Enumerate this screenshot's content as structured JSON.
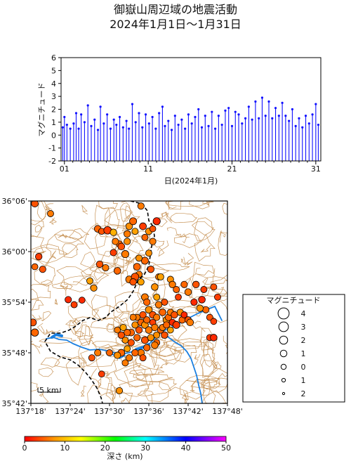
{
  "title": {
    "line1": "御嶽山周辺域の地震活動",
    "line2": "2024年1月1日～1月31日"
  },
  "chart_data": [
    {
      "type": "bar",
      "xlabel": "日(2024年1月)",
      "ylabel": "マグニチュード",
      "ylim": [
        -2,
        6
      ],
      "yticks": [
        -2,
        -1,
        0,
        1,
        2,
        3,
        4,
        5,
        6
      ],
      "xlim": [
        0.6,
        31.6
      ],
      "xticks": [
        1,
        11,
        21,
        31
      ],
      "xtick_labels": [
        "01",
        "11",
        "21",
        "31"
      ],
      "color": "#1010ff",
      "baseline": -2,
      "x": [
        0.8,
        1.0,
        1.3,
        1.7,
        2.1,
        2.4,
        2.7,
        3.0,
        3.4,
        3.8,
        4.2,
        4.6,
        5.0,
        5.3,
        5.7,
        6.1,
        6.5,
        6.9,
        7.2,
        7.6,
        8.0,
        8.4,
        8.7,
        9.1,
        9.5,
        9.9,
        10.3,
        10.7,
        11.1,
        11.5,
        11.9,
        12.3,
        12.7,
        13.0,
        13.4,
        13.8,
        14.2,
        14.6,
        15.0,
        15.4,
        15.8,
        16.2,
        16.6,
        17.0,
        17.4,
        17.8,
        18.2,
        18.6,
        19.0,
        19.4,
        19.8,
        20.2,
        20.6,
        21.0,
        21.4,
        21.8,
        22.2,
        22.6,
        23.0,
        23.4,
        23.8,
        24.2,
        24.6,
        25.0,
        25.4,
        25.8,
        26.2,
        26.6,
        27.0,
        27.4,
        27.8,
        28.2,
        28.6,
        29.0,
        29.4,
        29.8,
        30.2,
        30.6,
        31.0,
        31.3
      ],
      "values": [
        0.6,
        1.4,
        0.8,
        0.5,
        0.9,
        1.7,
        0.5,
        1.6,
        1.0,
        2.3,
        0.7,
        1.2,
        0.4,
        2.2,
        0.9,
        1.6,
        0.5,
        1.2,
        0.8,
        1.4,
        0.6,
        1.1,
        0.5,
        2.4,
        1.0,
        1.7,
        0.6,
        1.6,
        0.9,
        1.4,
        0.5,
        1.7,
        2.2,
        0.7,
        1.1,
        0.4,
        1.5,
        0.8,
        1.2,
        0.5,
        1.6,
        0.9,
        1.4,
        2.0,
        0.6,
        1.5,
        0.7,
        1.8,
        0.5,
        1.5,
        0.8,
        1.9,
        2.1,
        0.7,
        1.8,
        1.6,
        0.9,
        1.3,
        2.2,
        1.2,
        2.6,
        1.3,
        2.9,
        1.5,
        2.6,
        1.3,
        2.1,
        1.5,
        2.5,
        1.5,
        1.1,
        2.0,
        0.7,
        1.3,
        0.6,
        1.5,
        0.9,
        1.6,
        2.4,
        0.8
      ]
    },
    {
      "type": "scatter",
      "subtype": "epicenter-map",
      "xlim": [
        137.3,
        137.8
      ],
      "ylim": [
        35.7,
        36.1
      ],
      "xtick_labels": [
        "137°18'",
        "137°24'",
        "137°30'",
        "137°36'",
        "137°42'",
        "137°48'"
      ],
      "ytick_labels": [
        "35°42'",
        "35°48'",
        "35°54'",
        "36°00'",
        "36°06'"
      ],
      "scale_bar": "5 km",
      "point_fields": [
        "lon",
        "lat",
        "depth_km",
        "magnitude"
      ],
      "points": [
        [
          137.31,
          36.095,
          4,
          1.2
        ],
        [
          137.35,
          36.075,
          6,
          0.8
        ],
        [
          137.32,
          35.99,
          3,
          1.0
        ],
        [
          137.31,
          35.97,
          5,
          0.7
        ],
        [
          137.33,
          35.965,
          4,
          0.9
        ],
        [
          137.395,
          35.905,
          2,
          0.9
        ],
        [
          137.41,
          35.895,
          3,
          0.8
        ],
        [
          137.45,
          35.942,
          8,
          0.8
        ],
        [
          137.46,
          35.928,
          7,
          0.9
        ],
        [
          137.43,
          35.904,
          2,
          0.7
        ],
        [
          137.305,
          35.86,
          4,
          1.3
        ],
        [
          137.31,
          35.84,
          5,
          1.5
        ],
        [
          137.47,
          36.045,
          5,
          1.1
        ],
        [
          137.48,
          36.04,
          4,
          0.7
        ],
        [
          137.495,
          36.042,
          3,
          1.6
        ],
        [
          137.51,
          36.038,
          9,
          1.0
        ],
        [
          137.475,
          35.975,
          4,
          1.0
        ],
        [
          137.49,
          35.968,
          6,
          0.9
        ],
        [
          137.51,
          35.998,
          3,
          0.9
        ],
        [
          137.525,
          36.015,
          5,
          0.8
        ],
        [
          137.515,
          36.02,
          6,
          0.9
        ],
        [
          137.53,
          36.01,
          4,
          1.1
        ],
        [
          137.54,
          35.995,
          6,
          1.4
        ],
        [
          137.545,
          36.02,
          7,
          0.9
        ],
        [
          137.545,
          36.035,
          6,
          1.0
        ],
        [
          137.55,
          36.05,
          7,
          1.1
        ],
        [
          137.56,
          36.06,
          5,
          1.3
        ],
        [
          137.565,
          36.04,
          8,
          0.8
        ],
        [
          137.58,
          36.09,
          6,
          0.9
        ],
        [
          137.585,
          36.05,
          3,
          1.2
        ],
        [
          137.59,
          36.028,
          5,
          0.8
        ],
        [
          137.6,
          36.04,
          7,
          1.0
        ],
        [
          137.61,
          36.045,
          4,
          0.7
        ],
        [
          137.62,
          36.06,
          2,
          1.4
        ],
        [
          137.61,
          36.02,
          6,
          0.9
        ],
        [
          137.6,
          35.997,
          7,
          0.8
        ],
        [
          137.59,
          35.982,
          5,
          1.3
        ],
        [
          137.605,
          35.965,
          4,
          1.0
        ],
        [
          137.575,
          35.955,
          6,
          0.9
        ],
        [
          137.57,
          35.97,
          5,
          1.2
        ],
        [
          137.575,
          35.987,
          7,
          0.8
        ],
        [
          137.52,
          35.962,
          5,
          1.1
        ],
        [
          137.55,
          35.945,
          6,
          1.2
        ],
        [
          137.565,
          35.95,
          4,
          1.6
        ],
        [
          137.58,
          35.94,
          8,
          0.8
        ],
        [
          137.56,
          35.94,
          4,
          1.0
        ],
        [
          137.625,
          35.95,
          6,
          0.7
        ],
        [
          137.63,
          35.95,
          8,
          0.9
        ],
        [
          137.615,
          35.93,
          7,
          1.1
        ],
        [
          137.62,
          35.91,
          8,
          0.8
        ],
        [
          137.655,
          35.945,
          7,
          0.9
        ],
        [
          137.66,
          35.935,
          6,
          1.0
        ],
        [
          137.67,
          35.925,
          5,
          0.8
        ],
        [
          137.675,
          35.91,
          3,
          0.7
        ],
        [
          137.69,
          35.935,
          5,
          0.9
        ],
        [
          137.7,
          35.92,
          6,
          1.1
        ],
        [
          137.72,
          35.935,
          4,
          1.0
        ],
        [
          137.74,
          35.925,
          3,
          0.8
        ],
        [
          137.735,
          35.905,
          2,
          1.1
        ],
        [
          137.745,
          35.885,
          5,
          0.9
        ],
        [
          137.755,
          35.87,
          4,
          0.8
        ],
        [
          137.765,
          35.862,
          3,
          0.7
        ],
        [
          137.765,
          35.93,
          4,
          0.8
        ],
        [
          137.775,
          35.91,
          3,
          0.8
        ],
        [
          137.715,
          35.9,
          2,
          0.9
        ],
        [
          137.73,
          35.888,
          7,
          1.0
        ],
        [
          137.755,
          35.83,
          3,
          0.8
        ],
        [
          137.765,
          35.83,
          2,
          1.1
        ],
        [
          137.59,
          35.91,
          6,
          1.2
        ],
        [
          137.595,
          35.9,
          5,
          1.0
        ],
        [
          137.6,
          35.885,
          7,
          1.2
        ],
        [
          137.61,
          35.875,
          4,
          1.1
        ],
        [
          137.62,
          35.87,
          6,
          0.9
        ],
        [
          137.625,
          35.895,
          6,
          1.0
        ],
        [
          137.635,
          35.88,
          5,
          1.1
        ],
        [
          137.64,
          35.9,
          4,
          0.8
        ],
        [
          137.645,
          35.865,
          7,
          1.2
        ],
        [
          137.65,
          35.87,
          5,
          1.0
        ],
        [
          137.655,
          35.88,
          6,
          0.8
        ],
        [
          137.66,
          35.86,
          2,
          0.9
        ],
        [
          137.665,
          35.875,
          4,
          1.0
        ],
        [
          137.67,
          35.855,
          3,
          1.3
        ],
        [
          137.68,
          35.88,
          7,
          0.9
        ],
        [
          137.685,
          35.865,
          5,
          1.0
        ],
        [
          137.69,
          35.875,
          2,
          0.7
        ],
        [
          137.7,
          35.865,
          4,
          0.9
        ],
        [
          137.705,
          35.86,
          6,
          1.1
        ],
        [
          137.585,
          35.875,
          4,
          1.0
        ],
        [
          137.57,
          35.87,
          6,
          0.8
        ],
        [
          137.58,
          35.86,
          5,
          1.0
        ],
        [
          137.59,
          35.855,
          7,
          1.2
        ],
        [
          137.595,
          35.865,
          5,
          0.9
        ],
        [
          137.61,
          35.86,
          3,
          0.8
        ],
        [
          137.6,
          35.845,
          6,
          1.1
        ],
        [
          137.575,
          35.845,
          4,
          1.0
        ],
        [
          137.565,
          35.855,
          7,
          0.9
        ],
        [
          137.555,
          35.84,
          5,
          1.1
        ],
        [
          137.615,
          35.85,
          6,
          1.0
        ],
        [
          137.62,
          35.835,
          7,
          0.8
        ],
        [
          137.63,
          35.845,
          5,
          0.9
        ],
        [
          137.635,
          35.85,
          6,
          0.8
        ],
        [
          137.64,
          35.835,
          4,
          1.0
        ],
        [
          137.645,
          35.855,
          5,
          0.9
        ],
        [
          137.655,
          35.845,
          8,
          0.7
        ],
        [
          137.56,
          35.87,
          6,
          0.8
        ],
        [
          137.57,
          35.83,
          5,
          0.9
        ],
        [
          137.59,
          35.825,
          4,
          1.2
        ],
        [
          137.605,
          35.83,
          7,
          0.9
        ],
        [
          137.62,
          35.82,
          5,
          0.8
        ],
        [
          137.615,
          35.815,
          6,
          1.1
        ],
        [
          137.595,
          35.81,
          5,
          0.9
        ],
        [
          137.58,
          35.8,
          6,
          1.1
        ],
        [
          137.585,
          35.79,
          4,
          0.8
        ],
        [
          137.565,
          35.8,
          5,
          1.0
        ],
        [
          137.55,
          35.79,
          6,
          0.9
        ],
        [
          137.545,
          35.808,
          8,
          0.7
        ],
        [
          137.53,
          35.8,
          5,
          1.2
        ],
        [
          137.52,
          35.795,
          7,
          0.9
        ],
        [
          137.54,
          35.78,
          6,
          0.8
        ],
        [
          137.555,
          35.82,
          4,
          0.9
        ],
        [
          137.54,
          35.825,
          7,
          0.8
        ],
        [
          137.545,
          35.84,
          5,
          1.0
        ],
        [
          137.53,
          35.835,
          4,
          1.0
        ],
        [
          137.535,
          35.85,
          8,
          0.9
        ],
        [
          137.52,
          35.845,
          6,
          0.7
        ],
        [
          137.525,
          35.725,
          7,
          0.9
        ],
        [
          137.455,
          35.79,
          4,
          0.8
        ],
        [
          137.48,
          35.758,
          3,
          0.7
        ],
        [
          137.47,
          35.8,
          6,
          0.9
        ],
        [
          137.5,
          35.8,
          5,
          0.8
        ]
      ]
    },
    {
      "type": "legend",
      "title": "マグニチュード",
      "entries": [
        "4",
        "3",
        "2",
        "1",
        "0",
        "1",
        "2"
      ],
      "marker_values": [
        4,
        3,
        2,
        1,
        0,
        -1,
        -2
      ]
    },
    {
      "type": "colorbar",
      "label": "深さ (km)",
      "range": [
        0,
        50
      ],
      "ticks": [
        0,
        10,
        20,
        30,
        40,
        50
      ],
      "colors": [
        "#ff0000",
        "#ff9900",
        "#ffff00",
        "#00ff00",
        "#00ffff",
        "#0000ff",
        "#ff00ff"
      ]
    }
  ]
}
